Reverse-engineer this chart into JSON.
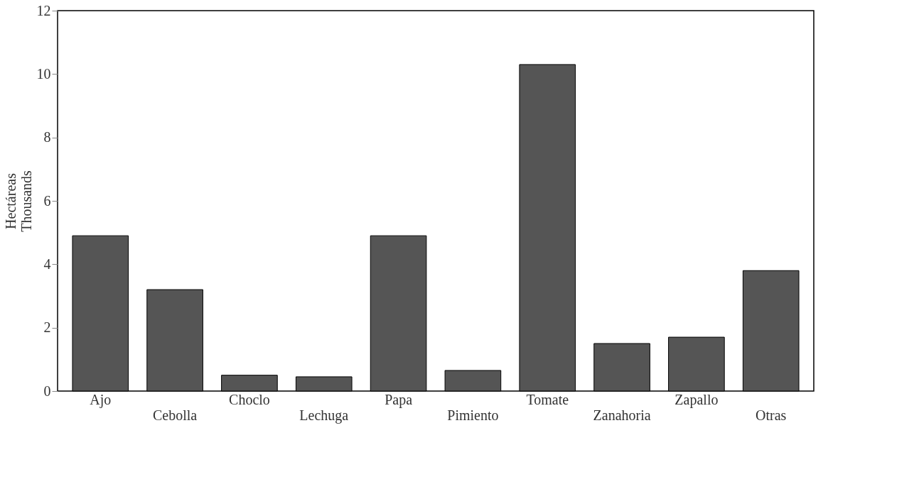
{
  "chart_data": {
    "type": "bar",
    "ylabel": "Hectáreas Thousands",
    "categories": [
      "Ajo",
      "Cebolla",
      "Choclo",
      "Lechuga",
      "Papa",
      "Pimiento",
      "Tomate",
      "Zanahoria",
      "Zapallo",
      "Otras"
    ],
    "values": [
      4.9,
      3.2,
      0.5,
      0.45,
      4.9,
      0.65,
      10.3,
      1.5,
      1.7,
      3.8
    ],
    "color": "#555555",
    "ylim": [
      0,
      12
    ],
    "yticks": [
      0,
      2,
      4,
      6,
      8,
      10,
      12
    ],
    "grid": false
  }
}
